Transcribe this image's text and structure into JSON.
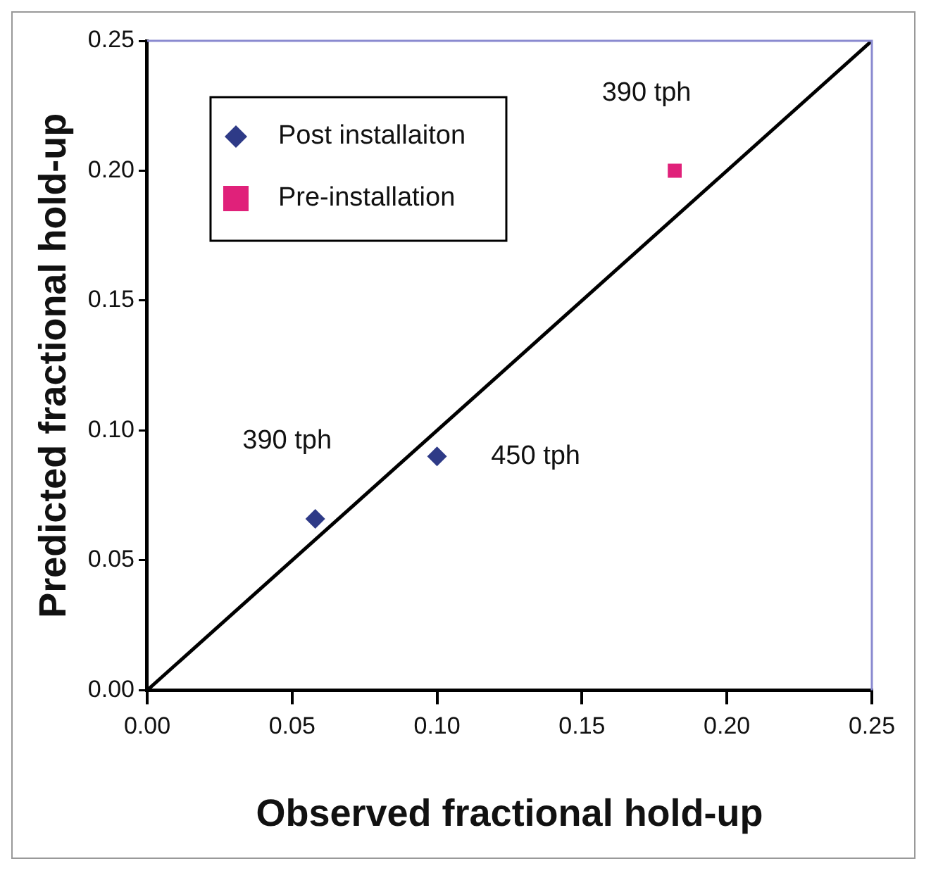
{
  "chart_data": {
    "type": "scatter",
    "xlabel": "Observed fractional hold-up",
    "ylabel": "Predicted fractional hold-up",
    "xlim": [
      0,
      0.25
    ],
    "ylim": [
      0,
      0.25
    ],
    "xticks": [
      {
        "value": 0,
        "label": "0.00"
      },
      {
        "value": 0.05,
        "label": "0.05"
      },
      {
        "value": 0.1,
        "label": "0.10"
      },
      {
        "value": 0.15,
        "label": "0.15"
      },
      {
        "value": 0.2,
        "label": "0.20"
      },
      {
        "value": 0.25,
        "label": "0.25"
      }
    ],
    "yticks": [
      {
        "value": 0,
        "label": "0.00"
      },
      {
        "value": 0.05,
        "label": "0.05"
      },
      {
        "value": 0.1,
        "label": "0.10"
      },
      {
        "value": 0.15,
        "label": "0.15"
      },
      {
        "value": 0.2,
        "label": "0.20"
      },
      {
        "value": 0.25,
        "label": "0.25"
      }
    ],
    "series": [
      {
        "name": "Post installaiton",
        "color": "#2e3a87",
        "marker": "diamond",
        "x": [
          0.058,
          0.1
        ],
        "values": [
          0.066,
          0.09
        ]
      },
      {
        "name": "Pre-installation",
        "color": "#e0217a",
        "marker": "square",
        "x": [
          0.182
        ],
        "values": [
          0.2
        ]
      },
      {
        "type": "line",
        "color": "#000000",
        "marker": "none",
        "x": [
          0,
          0.25
        ],
        "values": [
          0,
          0.25
        ]
      }
    ],
    "annotations": [
      {
        "text": "390 tph",
        "x": 0.058,
        "y": 0.066
      },
      {
        "text": "450 tph",
        "x": 0.1,
        "y": 0.09
      },
      {
        "text": "390 tph",
        "x": 0.182,
        "y": 0.2
      }
    ],
    "grid": false,
    "legend": "top left"
  }
}
